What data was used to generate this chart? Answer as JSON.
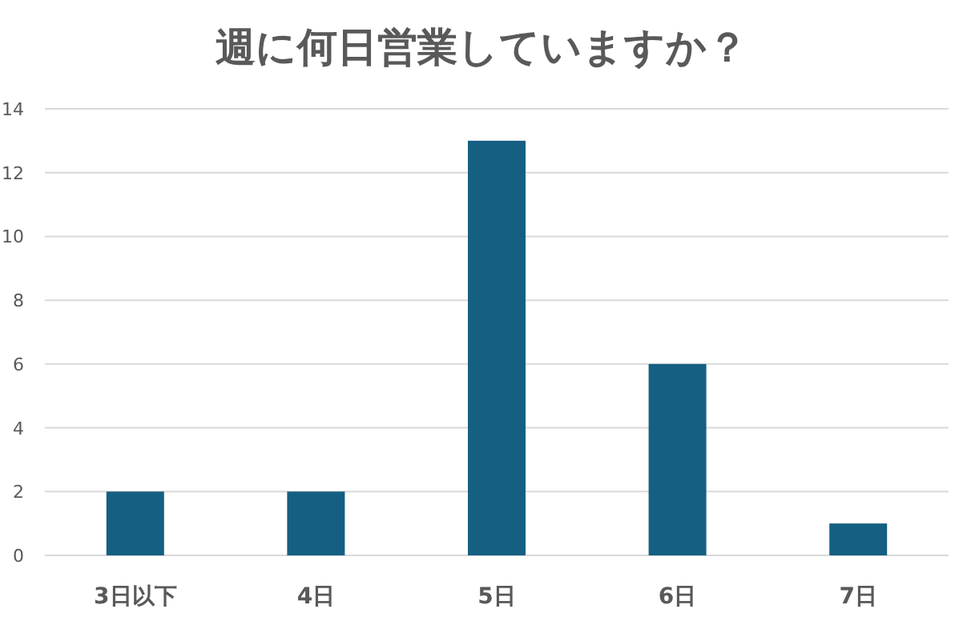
{
  "chart_data": {
    "type": "bar",
    "title": "週に何日営業していますか？",
    "categories": [
      "3日以下",
      "4日",
      "5日",
      "6日",
      "7日"
    ],
    "values": [
      2,
      2,
      13,
      6,
      1
    ],
    "color": "#155f82",
    "ylim": [
      0,
      14
    ],
    "yticks": [
      0,
      2,
      4,
      6,
      8,
      10,
      12,
      14
    ],
    "grid": "y"
  }
}
